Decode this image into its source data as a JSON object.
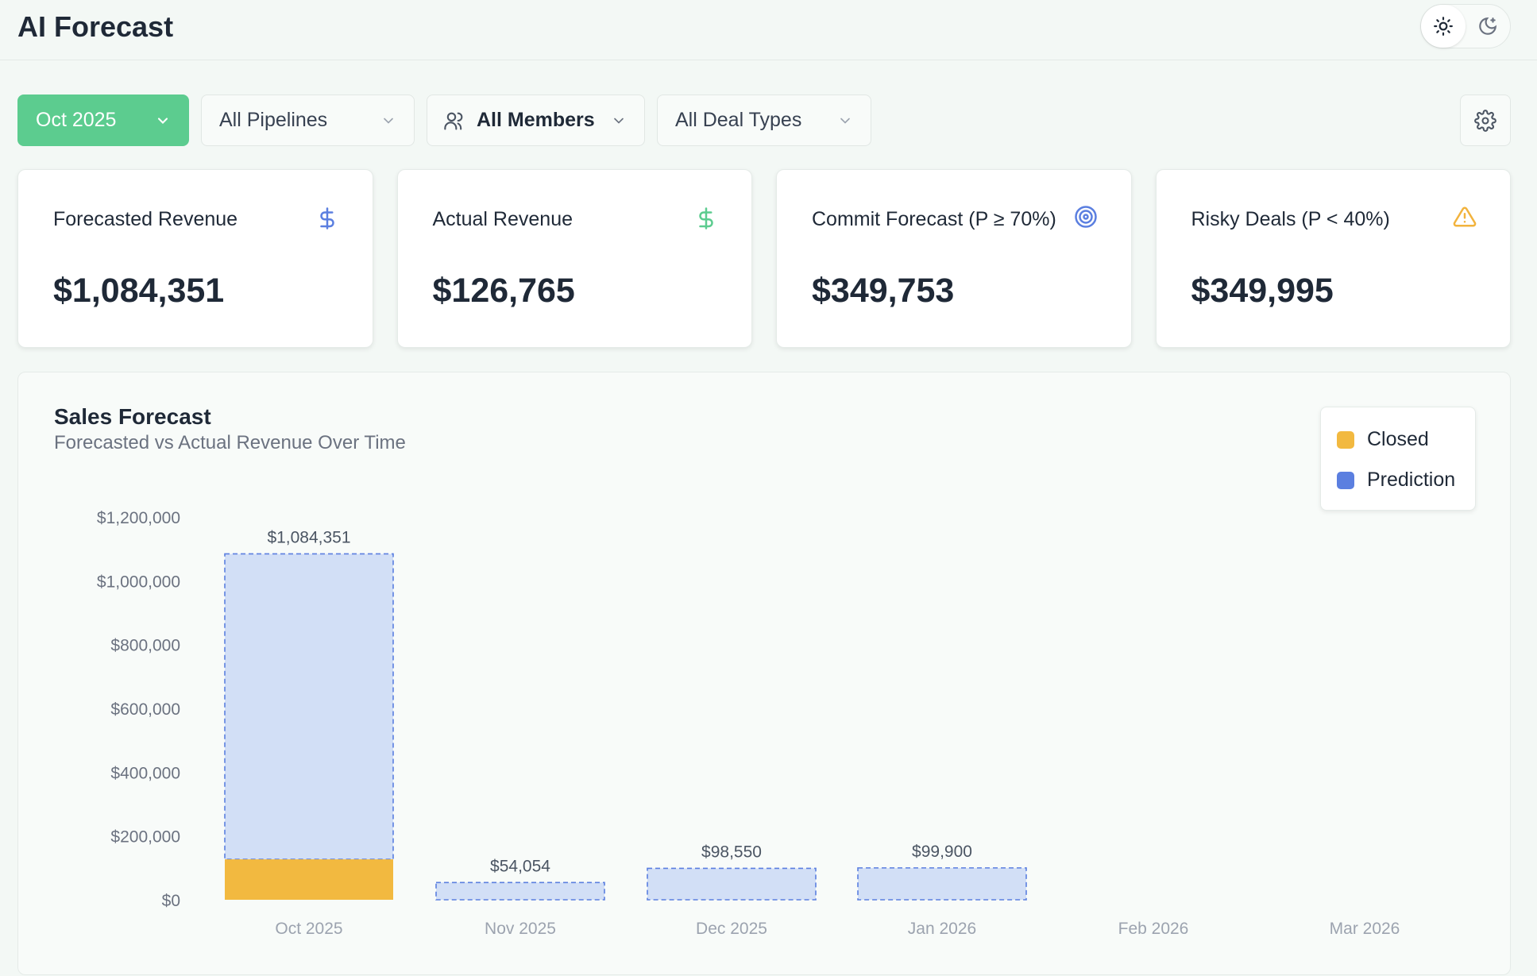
{
  "header": {
    "title": "AI Forecast"
  },
  "filters": {
    "period": "Oct 2025",
    "pipelines": "All Pipelines",
    "members": "All Members",
    "deal_types": "All Deal Types"
  },
  "cards": [
    {
      "label": "Forecasted Revenue",
      "value": "$1,084,351",
      "icon": "dollar-icon",
      "icon_color": "#5b7fe0"
    },
    {
      "label": "Actual Revenue",
      "value": "$126,765",
      "icon": "dollar-icon",
      "icon_color": "#5ccc8f"
    },
    {
      "label": "Commit Forecast (P ≥ 70%)",
      "value": "$349,753",
      "icon": "target-icon",
      "icon_color": "#5b7fe0"
    },
    {
      "label": "Risky Deals (P < 40%)",
      "value": "$349,995",
      "icon": "warning-icon",
      "icon_color": "#f2b33d"
    }
  ],
  "chart": {
    "title": "Sales Forecast",
    "subtitle": "Forecasted vs Actual Revenue Over Time"
  },
  "colors": {
    "accent": "#5ccc8f",
    "closed": "#f2b940",
    "prediction": "#5b7fe0",
    "prediction_fill": "#d2dff6"
  },
  "chart_data": {
    "type": "bar",
    "categories": [
      "Oct 2025",
      "Nov 2025",
      "Dec 2025",
      "Jan 2026",
      "Feb 2026",
      "Mar 2026"
    ],
    "series": [
      {
        "name": "Closed",
        "values": [
          126765,
          0,
          0,
          0,
          0,
          0
        ]
      },
      {
        "name": "Prediction",
        "values": [
          1084351,
          54054,
          98550,
          99900,
          0,
          0
        ]
      }
    ],
    "data_labels": [
      "$1,084,351",
      "$54,054",
      "$98,550",
      "$99,900",
      "",
      ""
    ],
    "yticks": [
      "$0",
      "$200,000",
      "$400,000",
      "$600,000",
      "$800,000",
      "$1,000,000",
      "$1,200,000"
    ],
    "ylim": [
      0,
      1200000
    ],
    "legend": "top-right",
    "grid": false
  }
}
